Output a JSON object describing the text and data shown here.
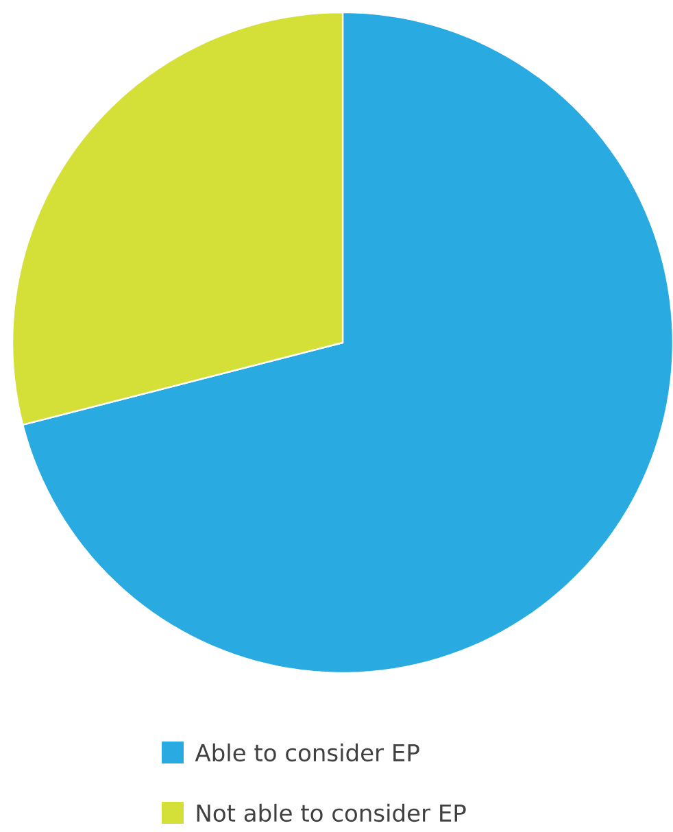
{
  "chart_data": {
    "type": "pie",
    "categories": [
      "Able to consider EP",
      "Not able to consider EP"
    ],
    "values": [
      71,
      29
    ],
    "colors": [
      "#29abe2",
      "#d4df38"
    ],
    "legend": "bottom"
  }
}
